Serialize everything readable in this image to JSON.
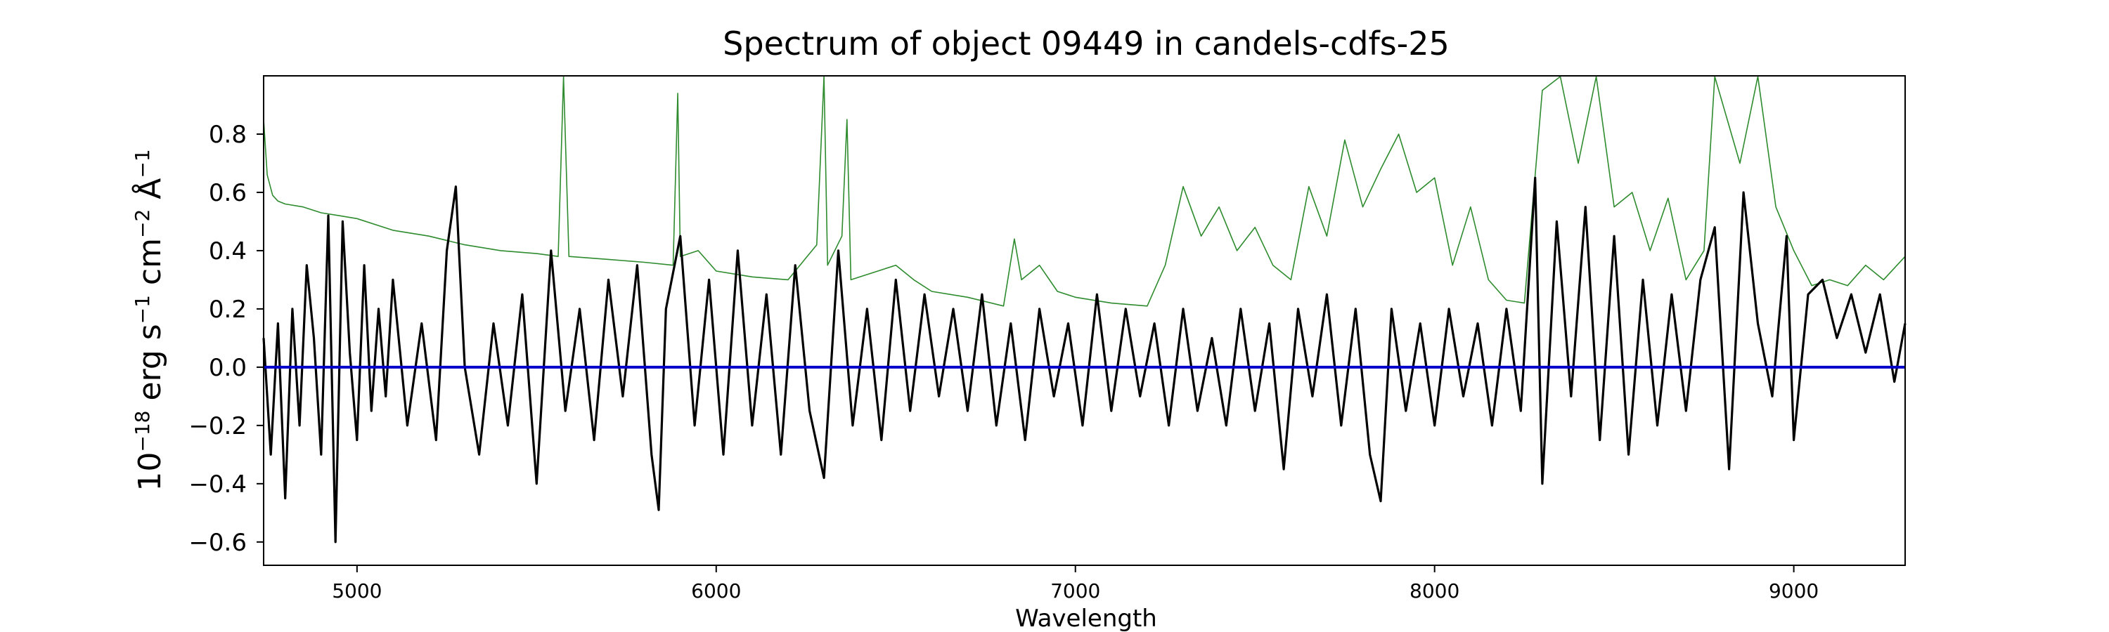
{
  "chart_data": {
    "type": "line",
    "title": "Spectrum of object 09449 in candels-cdfs-25",
    "xlabel": "Wavelength",
    "ylabel": {
      "base": "10",
      "exp": "−18",
      "unit_a": " erg s",
      "exp_a": "−1",
      "unit_b": " cm",
      "exp_b": "−2",
      "unit_c": " Å",
      "exp_c": "−1"
    },
    "xlim": [
      4740,
      9310
    ],
    "ylim": [
      -0.68,
      1.0
    ],
    "x_ticks": [
      {
        "value": 5000,
        "label": "5000"
      },
      {
        "value": 6000,
        "label": "6000"
      },
      {
        "value": 7000,
        "label": "7000"
      },
      {
        "value": 8000,
        "label": "8000"
      },
      {
        "value": 9000,
        "label": "9000"
      }
    ],
    "y_ticks": [
      {
        "value": -0.6,
        "label": "−0.6"
      },
      {
        "value": -0.4,
        "label": "−0.4"
      },
      {
        "value": -0.2,
        "label": "−0.2"
      },
      {
        "value": 0.0,
        "label": "0.0"
      },
      {
        "value": 0.2,
        "label": "0.2"
      },
      {
        "value": 0.4,
        "label": "0.4"
      },
      {
        "value": 0.6,
        "label": "0.6"
      },
      {
        "value": 0.8,
        "label": "0.8"
      }
    ],
    "grid": false,
    "legend": "none",
    "series": [
      {
        "role": "noise",
        "color": "#2e8b2e",
        "points": [
          [
            4740,
            0.85
          ],
          [
            4750,
            0.66
          ],
          [
            4765,
            0.59
          ],
          [
            4780,
            0.57
          ],
          [
            4800,
            0.56
          ],
          [
            4850,
            0.55
          ],
          [
            4900,
            0.53
          ],
          [
            4950,
            0.52
          ],
          [
            5000,
            0.51
          ],
          [
            5100,
            0.47
          ],
          [
            5200,
            0.45
          ],
          [
            5300,
            0.42
          ],
          [
            5400,
            0.4
          ],
          [
            5500,
            0.39
          ],
          [
            5560,
            0.38
          ],
          [
            5575,
            1.0
          ],
          [
            5590,
            0.38
          ],
          [
            5700,
            0.37
          ],
          [
            5800,
            0.36
          ],
          [
            5880,
            0.35
          ],
          [
            5893,
            0.94
          ],
          [
            5900,
            0.38
          ],
          [
            5950,
            0.4
          ],
          [
            6000,
            0.33
          ],
          [
            6100,
            0.31
          ],
          [
            6200,
            0.3
          ],
          [
            6280,
            0.42
          ],
          [
            6300,
            1.0
          ],
          [
            6310,
            0.35
          ],
          [
            6350,
            0.45
          ],
          [
            6364,
            0.85
          ],
          [
            6375,
            0.3
          ],
          [
            6450,
            0.33
          ],
          [
            6500,
            0.35
          ],
          [
            6550,
            0.3
          ],
          [
            6600,
            0.26
          ],
          [
            6700,
            0.24
          ],
          [
            6800,
            0.21
          ],
          [
            6830,
            0.44
          ],
          [
            6850,
            0.3
          ],
          [
            6900,
            0.35
          ],
          [
            6950,
            0.26
          ],
          [
            7000,
            0.24
          ],
          [
            7100,
            0.22
          ],
          [
            7200,
            0.21
          ],
          [
            7250,
            0.35
          ],
          [
            7300,
            0.62
          ],
          [
            7350,
            0.45
          ],
          [
            7400,
            0.55
          ],
          [
            7450,
            0.4
          ],
          [
            7500,
            0.48
          ],
          [
            7550,
            0.35
          ],
          [
            7600,
            0.3
          ],
          [
            7650,
            0.62
          ],
          [
            7700,
            0.45
          ],
          [
            7750,
            0.78
          ],
          [
            7800,
            0.55
          ],
          [
            7850,
            0.68
          ],
          [
            7900,
            0.8
          ],
          [
            7950,
            0.6
          ],
          [
            8000,
            0.65
          ],
          [
            8050,
            0.35
          ],
          [
            8100,
            0.55
          ],
          [
            8150,
            0.3
          ],
          [
            8200,
            0.23
          ],
          [
            8250,
            0.22
          ],
          [
            8300,
            0.95
          ],
          [
            8350,
            1.0
          ],
          [
            8400,
            0.7
          ],
          [
            8450,
            1.0
          ],
          [
            8500,
            0.55
          ],
          [
            8550,
            0.6
          ],
          [
            8600,
            0.4
          ],
          [
            8650,
            0.58
          ],
          [
            8700,
            0.3
          ],
          [
            8750,
            0.4
          ],
          [
            8780,
            1.0
          ],
          [
            8850,
            0.7
          ],
          [
            8900,
            1.0
          ],
          [
            8950,
            0.55
          ],
          [
            9000,
            0.4
          ],
          [
            9050,
            0.28
          ],
          [
            9100,
            0.3
          ],
          [
            9150,
            0.28
          ],
          [
            9200,
            0.35
          ],
          [
            9250,
            0.3
          ],
          [
            9310,
            0.38
          ]
        ]
      },
      {
        "role": "flux",
        "color": "#000000",
        "points": [
          [
            4740,
            0.1
          ],
          [
            4760,
            -0.3
          ],
          [
            4780,
            0.15
          ],
          [
            4800,
            -0.45
          ],
          [
            4820,
            0.2
          ],
          [
            4840,
            -0.2
          ],
          [
            4860,
            0.35
          ],
          [
            4880,
            0.1
          ],
          [
            4900,
            -0.3
          ],
          [
            4920,
            0.52
          ],
          [
            4940,
            -0.6
          ],
          [
            4960,
            0.5
          ],
          [
            4980,
            0.05
          ],
          [
            5000,
            -0.25
          ],
          [
            5020,
            0.35
          ],
          [
            5040,
            -0.15
          ],
          [
            5060,
            0.2
          ],
          [
            5080,
            -0.1
          ],
          [
            5100,
            0.3
          ],
          [
            5140,
            -0.2
          ],
          [
            5180,
            0.15
          ],
          [
            5220,
            -0.25
          ],
          [
            5250,
            0.4
          ],
          [
            5275,
            0.62
          ],
          [
            5300,
            0.0
          ],
          [
            5340,
            -0.3
          ],
          [
            5380,
            0.15
          ],
          [
            5420,
            -0.2
          ],
          [
            5460,
            0.25
          ],
          [
            5500,
            -0.4
          ],
          [
            5540,
            0.4
          ],
          [
            5580,
            -0.15
          ],
          [
            5620,
            0.2
          ],
          [
            5660,
            -0.25
          ],
          [
            5700,
            0.3
          ],
          [
            5740,
            -0.1
          ],
          [
            5780,
            0.35
          ],
          [
            5820,
            -0.3
          ],
          [
            5840,
            -0.49
          ],
          [
            5860,
            0.2
          ],
          [
            5900,
            0.45
          ],
          [
            5940,
            -0.2
          ],
          [
            5980,
            0.3
          ],
          [
            6020,
            -0.3
          ],
          [
            6060,
            0.4
          ],
          [
            6100,
            -0.2
          ],
          [
            6140,
            0.25
          ],
          [
            6180,
            -0.3
          ],
          [
            6220,
            0.35
          ],
          [
            6260,
            -0.15
          ],
          [
            6300,
            -0.38
          ],
          [
            6340,
            0.4
          ],
          [
            6380,
            -0.2
          ],
          [
            6420,
            0.2
          ],
          [
            6460,
            -0.25
          ],
          [
            6500,
            0.3
          ],
          [
            6540,
            -0.15
          ],
          [
            6580,
            0.25
          ],
          [
            6620,
            -0.1
          ],
          [
            6660,
            0.2
          ],
          [
            6700,
            -0.15
          ],
          [
            6740,
            0.25
          ],
          [
            6780,
            -0.2
          ],
          [
            6820,
            0.15
          ],
          [
            6860,
            -0.25
          ],
          [
            6900,
            0.2
          ],
          [
            6940,
            -0.1
          ],
          [
            6980,
            0.15
          ],
          [
            7020,
            -0.2
          ],
          [
            7060,
            0.25
          ],
          [
            7100,
            -0.15
          ],
          [
            7140,
            0.2
          ],
          [
            7180,
            -0.1
          ],
          [
            7220,
            0.15
          ],
          [
            7260,
            -0.2
          ],
          [
            7300,
            0.2
          ],
          [
            7340,
            -0.15
          ],
          [
            7380,
            0.1
          ],
          [
            7420,
            -0.2
          ],
          [
            7460,
            0.2
          ],
          [
            7500,
            -0.15
          ],
          [
            7540,
            0.15
          ],
          [
            7580,
            -0.35
          ],
          [
            7620,
            0.2
          ],
          [
            7660,
            -0.1
          ],
          [
            7700,
            0.25
          ],
          [
            7740,
            -0.2
          ],
          [
            7780,
            0.2
          ],
          [
            7820,
            -0.3
          ],
          [
            7850,
            -0.46
          ],
          [
            7880,
            0.2
          ],
          [
            7920,
            -0.15
          ],
          [
            7960,
            0.15
          ],
          [
            8000,
            -0.2
          ],
          [
            8040,
            0.2
          ],
          [
            8080,
            -0.1
          ],
          [
            8120,
            0.15
          ],
          [
            8160,
            -0.2
          ],
          [
            8200,
            0.2
          ],
          [
            8240,
            -0.15
          ],
          [
            8280,
            0.65
          ],
          [
            8300,
            -0.4
          ],
          [
            8340,
            0.5
          ],
          [
            8380,
            -0.1
          ],
          [
            8420,
            0.55
          ],
          [
            8460,
            -0.25
          ],
          [
            8500,
            0.45
          ],
          [
            8540,
            -0.3
          ],
          [
            8580,
            0.3
          ],
          [
            8620,
            -0.2
          ],
          [
            8660,
            0.25
          ],
          [
            8700,
            -0.15
          ],
          [
            8740,
            0.3
          ],
          [
            8780,
            0.48
          ],
          [
            8820,
            -0.35
          ],
          [
            8860,
            0.6
          ],
          [
            8900,
            0.15
          ],
          [
            8940,
            -0.1
          ],
          [
            8980,
            0.45
          ],
          [
            9000,
            -0.25
          ],
          [
            9040,
            0.25
          ],
          [
            9080,
            0.3
          ],
          [
            9120,
            0.1
          ],
          [
            9160,
            0.25
          ],
          [
            9200,
            0.05
          ],
          [
            9240,
            0.25
          ],
          [
            9280,
            -0.05
          ],
          [
            9310,
            0.15
          ]
        ]
      },
      {
        "role": "zero",
        "color": "#0000cc",
        "points": [
          [
            4740,
            0.0
          ],
          [
            9310,
            0.0
          ]
        ]
      }
    ]
  }
}
